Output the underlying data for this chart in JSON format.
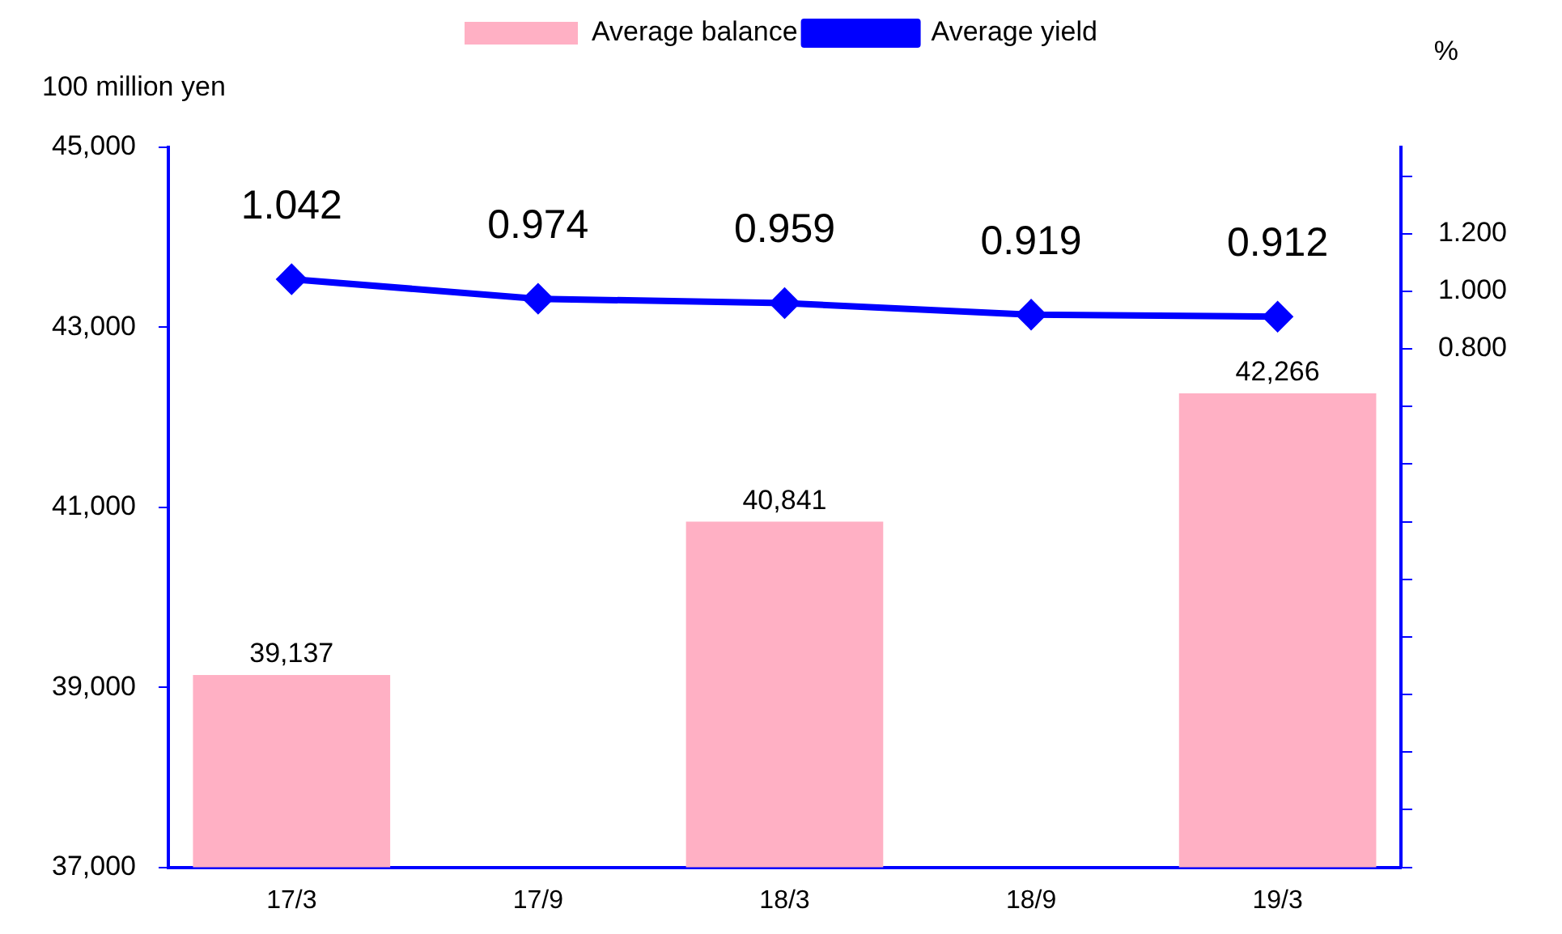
{
  "chart_data": {
    "type": "bar",
    "categories": [
      "17/3",
      "17/9",
      "18/3",
      "18/9",
      "19/3"
    ],
    "series": [
      {
        "name": "Average balance",
        "color": "#ffb0c4",
        "values": [
          39137,
          null,
          40841,
          null,
          42266
        ],
        "value_labels": [
          "39,137",
          null,
          "40,841",
          null,
          "42,266"
        ]
      },
      {
        "name": "Average yield",
        "type": "line",
        "axis": "y2",
        "color": "#0000ff",
        "values": [
          1.042,
          0.974,
          0.959,
          0.919,
          0.912
        ],
        "value_labels": [
          "1.042",
          "0.974",
          "0.959",
          "0.919",
          "0.912"
        ]
      }
    ],
    "ylabel": "100 million yen",
    "y2label": "%",
    "ylim": [
      37000,
      45000
    ],
    "yticks": [
      {
        "value": 37000,
        "label": "37,000"
      },
      {
        "value": 39000,
        "label": "39,000"
      },
      {
        "value": 41000,
        "label": "41,000"
      },
      {
        "value": 43000,
        "label": "43,000"
      },
      {
        "value": 45000,
        "label": "45,000"
      }
    ],
    "y2lim": [
      -1.0,
      1.5
    ],
    "y2ticks": [
      {
        "value": -1.0,
        "label": null
      },
      {
        "value": -0.8,
        "label": null
      },
      {
        "value": -0.6,
        "label": null
      },
      {
        "value": -0.4,
        "label": null
      },
      {
        "value": -0.2,
        "label": null
      },
      {
        "value": 0,
        "label": null
      },
      {
        "value": 0.2,
        "label": null
      },
      {
        "value": 0.4,
        "label": null
      },
      {
        "value": 0.6,
        "label": null
      },
      {
        "value": 0.8,
        "label": "0.800"
      },
      {
        "value": 1.0,
        "label": "1.000"
      },
      {
        "value": 1.2,
        "label": "1.200"
      },
      {
        "value": 1.4,
        "label": null
      }
    ],
    "marker": "diamond",
    "legend": "top",
    "grid": false
  }
}
